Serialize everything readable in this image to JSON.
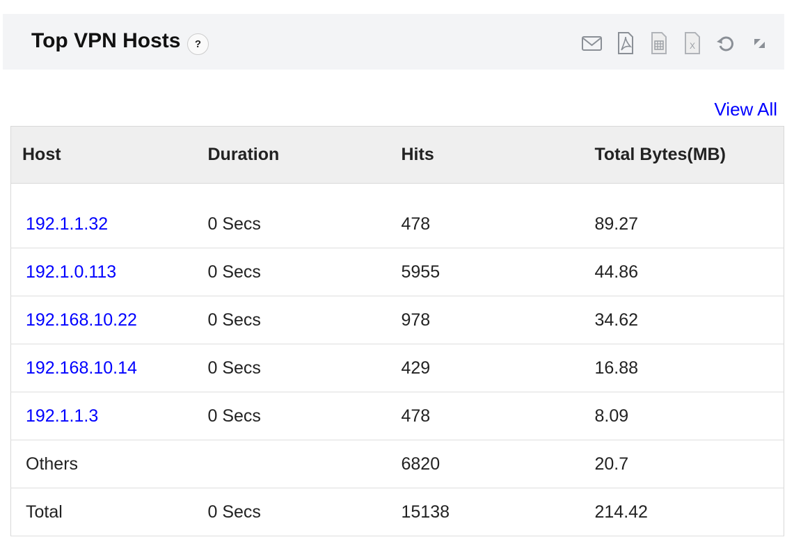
{
  "header": {
    "title": "Top VPN Hosts",
    "help": "?",
    "icons": [
      "mail-icon",
      "pdf-icon",
      "csv-icon",
      "excel-icon",
      "refresh-icon",
      "expand-icon"
    ]
  },
  "view_all": "View All",
  "table": {
    "columns": [
      "Host",
      "Duration",
      "Hits",
      "Total Bytes(MB)"
    ],
    "rows": [
      {
        "host": "192.1.1.32",
        "duration": "0 Secs",
        "hits": "478",
        "bytes": "89.27",
        "link": true
      },
      {
        "host": "192.1.0.113",
        "duration": "0 Secs",
        "hits": "5955",
        "bytes": "44.86",
        "link": true
      },
      {
        "host": "192.168.10.22",
        "duration": "0 Secs",
        "hits": "978",
        "bytes": "34.62",
        "link": true
      },
      {
        "host": "192.168.10.14",
        "duration": "0 Secs",
        "hits": "429",
        "bytes": "16.88",
        "link": true
      },
      {
        "host": "192.1.1.3",
        "duration": "0 Secs",
        "hits": "478",
        "bytes": "8.09",
        "link": true
      },
      {
        "host": "Others",
        "duration": "",
        "hits": "6820",
        "bytes": "20.7",
        "link": false
      },
      {
        "host": "Total",
        "duration": "0 Secs",
        "hits": "15138",
        "bytes": "214.42",
        "link": false
      }
    ]
  }
}
